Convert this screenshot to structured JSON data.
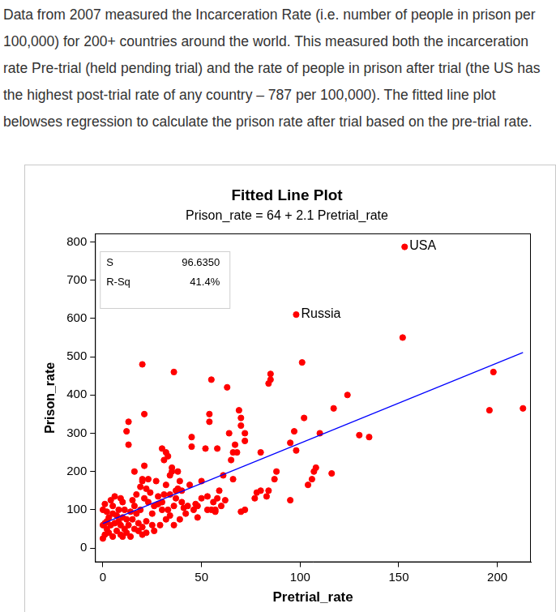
{
  "header": {
    "text": "Data from 2007 measured the Incarceration Rate (i.e. number of people in prison per 100,000) for 200+ countries around the world. This measured both the incarceration rate Pre-trial (held pending trial) and the rate of people in prison after trial (the US has the highest post-trial rate of any country – 787 per 100,000). The fitted line plot belowses regression to calculate the prison rate after trial based on the pre-trial rate."
  },
  "chart_data": {
    "type": "scatter",
    "title": "Fitted Line Plot",
    "subtitle": "Prison_rate = 64 + 2.1 Pretrial_rate",
    "x_label": "Pretrial_rate",
    "y_label": "Prison_rate",
    "xlim": [
      -4,
      217
    ],
    "ylim": [
      -37,
      822
    ],
    "xticks": [
      0,
      50,
      100,
      150,
      200
    ],
    "yticks": [
      0,
      100,
      200,
      300,
      400,
      500,
      600,
      700,
      800
    ],
    "grid": false,
    "stats": [
      {
        "name": "S",
        "text": "96.6350"
      },
      {
        "name": "R-Sq",
        "text": "41.4%"
      }
    ],
    "annotations": [
      {
        "text": "USA",
        "x": 153,
        "y": 787
      },
      {
        "text": "Russia",
        "x": 98,
        "y": 610
      }
    ],
    "series": [
      {
        "type": "scatter",
        "color": "#ff0000",
        "marker": "circle",
        "x": [
          153,
          98,
          152,
          198,
          196,
          213,
          130,
          135,
          124,
          117,
          116,
          110,
          107,
          108,
          106,
          104,
          102,
          101,
          98,
          97,
          95,
          95,
          88,
          87,
          85,
          85,
          84,
          84,
          83,
          80,
          80,
          78,
          77,
          72,
          72,
          72,
          70,
          70,
          70,
          69,
          68,
          67,
          66,
          66,
          65,
          64,
          63,
          62,
          61,
          60,
          59,
          58,
          58,
          57,
          57,
          56,
          55,
          55,
          54,
          54,
          53,
          53,
          52,
          50,
          50,
          48,
          48,
          47,
          46,
          45,
          45,
          44,
          43,
          42,
          41,
          40,
          40,
          39,
          39,
          38,
          38,
          37,
          37,
          36,
          36,
          36,
          35,
          35,
          34,
          34,
          34,
          33,
          33,
          32,
          32,
          32,
          31,
          31,
          30,
          30,
          30,
          29,
          28,
          28,
          27,
          26,
          26,
          25,
          25,
          24,
          23,
          23,
          22,
          22,
          22,
          21,
          21,
          21,
          20,
          20,
          20,
          20,
          20,
          19,
          19,
          18,
          18,
          17,
          17,
          16,
          16,
          16,
          15,
          15,
          14,
          14,
          13,
          13,
          13,
          12,
          12,
          12,
          11,
          11,
          10,
          10,
          10,
          9,
          9,
          9,
          8,
          8,
          7,
          7,
          6,
          6,
          5,
          5,
          5,
          4,
          4,
          3,
          3,
          2,
          2,
          2,
          1,
          1,
          0,
          0,
          0,
          1
        ],
        "values": [
          787,
          610,
          550,
          460,
          360,
          365,
          295,
          290,
          400,
          365,
          195,
          300,
          200,
          210,
          180,
          165,
          340,
          485,
          255,
          305,
          275,
          125,
          200,
          180,
          440,
          455,
          430,
          150,
          135,
          250,
          150,
          145,
          130,
          300,
          280,
          100,
          340,
          320,
          95,
          360,
          250,
          270,
          250,
          180,
          230,
          300,
          420,
          125,
          190,
          110,
          150,
          260,
          130,
          95,
          100,
          120,
          100,
          440,
          350,
          330,
          135,
          100,
          260,
          175,
          130,
          80,
          110,
          115,
          100,
          290,
          265,
          165,
          110,
          90,
          105,
          150,
          120,
          75,
          175,
          200,
          155,
          150,
          130,
          460,
          110,
          60,
          200,
          210,
          190,
          140,
          85,
          240,
          100,
          250,
          165,
          75,
          140,
          230,
          260,
          120,
          100,
          60,
          115,
          135,
          175,
          110,
          45,
          90,
          60,
          145,
          180,
          120,
          155,
          70,
          40,
          350,
          215,
          130,
          480,
          180,
          175,
          55,
          35,
          160,
          100,
          65,
          45,
          90,
          140,
          200,
          110,
          50,
          125,
          75,
          95,
          30,
          270,
          330,
          60,
          305,
          75,
          40,
          100,
          50,
          80,
          120,
          30,
          60,
          130,
          35,
          70,
          100,
          45,
          85,
          135,
          65,
          30,
          110,
          90,
          125,
          60,
          40,
          80,
          95,
          70,
          50,
          115,
          65,
          100,
          60,
          25,
          35
        ]
      },
      {
        "type": "line",
        "color": "#0000ff",
        "line_style": "solid",
        "x": [
          0,
          213
        ],
        "values": [
          64,
          511
        ]
      }
    ]
  }
}
